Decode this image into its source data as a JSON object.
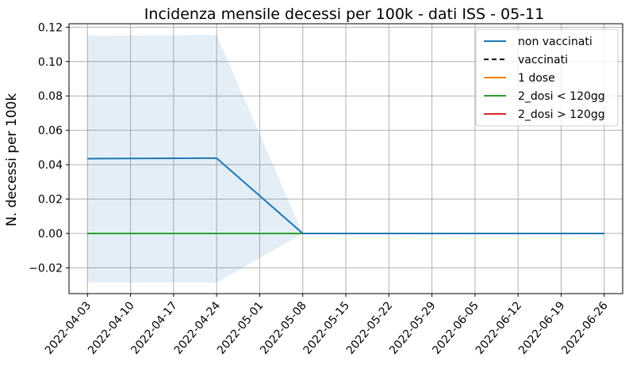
{
  "chart_data": {
    "type": "line",
    "title": "Incidenza mensile decessi per 100k - dati ISS - 05-11",
    "xlabel": "",
    "ylabel": "N. decessi per 100k",
    "x": [
      "2022-04-03",
      "2022-04-24",
      "2022-05-08",
      "2022-05-15",
      "2022-06-26"
    ],
    "x_ticks": [
      "2022-04-03",
      "2022-04-10",
      "2022-04-17",
      "2022-04-24",
      "2022-05-01",
      "2022-05-08",
      "2022-05-15",
      "2022-05-22",
      "2022-05-29",
      "2022-06-05",
      "2022-06-12",
      "2022-06-19",
      "2022-06-26"
    ],
    "x_range": [
      "2022-03-31",
      "2022-06-29"
    ],
    "ylim": [
      -0.035,
      0.122
    ],
    "y_ticks": [
      -0.02,
      0.0,
      0.02,
      0.04,
      0.06,
      0.08,
      0.1,
      0.12
    ],
    "y_tick_labels": [
      "−0.02",
      "0.00",
      "0.02",
      "0.04",
      "0.06",
      "0.08",
      "0.10",
      "0.12"
    ],
    "grid": true,
    "legend_position": "top-right",
    "series": [
      {
        "name": "non vaccinati",
        "color": "#1f77b4",
        "style": "solid",
        "points": [
          {
            "x": "2022-04-03",
            "y": 0.0435
          },
          {
            "x": "2022-04-24",
            "y": 0.0438
          },
          {
            "x": "2022-05-08",
            "y": 0.0
          },
          {
            "x": "2022-05-15",
            "y": 0.0
          },
          {
            "x": "2022-06-26",
            "y": 0.0
          }
        ],
        "band": {
          "color": "#1f77b4",
          "opacity": 0.12,
          "lower": [
            {
              "x": "2022-04-03",
              "y": -0.0285
            },
            {
              "x": "2022-04-24",
              "y": -0.0285
            },
            {
              "x": "2022-05-08",
              "y": 0.0
            },
            {
              "x": "2022-05-15",
              "y": 0.0
            },
            {
              "x": "2022-06-26",
              "y": 0.0
            }
          ],
          "upper": [
            {
              "x": "2022-04-03",
              "y": 0.115
            },
            {
              "x": "2022-04-24",
              "y": 0.1155
            },
            {
              "x": "2022-05-08",
              "y": 0.0
            },
            {
              "x": "2022-05-15",
              "y": 0.0
            },
            {
              "x": "2022-06-26",
              "y": 0.0
            }
          ]
        }
      },
      {
        "name": "vaccinati",
        "color": "#000000",
        "style": "dashed",
        "points": [
          {
            "x": "2022-04-03",
            "y": 0.0
          },
          {
            "x": "2022-06-26",
            "y": 0.0
          }
        ]
      },
      {
        "name": "1 dose",
        "color": "#ff7f0e",
        "style": "solid",
        "points": [
          {
            "x": "2022-04-03",
            "y": 0.0
          },
          {
            "x": "2022-06-26",
            "y": 0.0
          }
        ]
      },
      {
        "name": "2_dosi < 120gg",
        "color": "#2ca02c",
        "style": "solid",
        "points": [
          {
            "x": "2022-04-03",
            "y": 0.0
          },
          {
            "x": "2022-05-15",
            "y": 0.0
          }
        ]
      },
      {
        "name": "2_dosi > 120gg",
        "color": "#d62728",
        "style": "solid",
        "points": [
          {
            "x": "2022-05-15",
            "y": 0.0
          },
          {
            "x": "2022-06-26",
            "y": 0.0
          }
        ]
      }
    ]
  }
}
